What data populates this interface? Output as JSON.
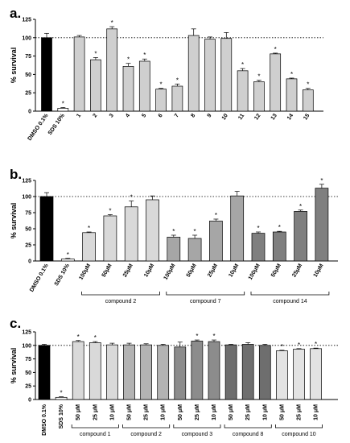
{
  "chart_data": [
    {
      "panel": "a.",
      "type": "bar",
      "ylabel": "% survival",
      "ylim": [
        0,
        125
      ],
      "yticks": [
        "0",
        "25",
        "50",
        "75",
        "100",
        "125"
      ],
      "reference_line": 100,
      "categories": [
        "DMSO 0.1%",
        "SDS 10%",
        "1",
        "2",
        "3",
        "4",
        "5",
        "6",
        "7",
        "8",
        "9",
        "10",
        "11",
        "12",
        "13",
        "14",
        "15"
      ],
      "values": [
        100,
        4,
        101,
        70,
        112,
        61,
        68,
        30,
        34,
        103,
        98,
        99,
        55,
        40,
        78,
        44,
        29
      ],
      "errors": [
        6,
        1,
        2,
        3,
        3,
        4,
        3,
        1,
        3,
        9,
        3,
        8,
        3,
        2,
        1,
        1,
        2
      ],
      "significant": [
        "",
        "*",
        "",
        "*",
        "*",
        "*",
        "*",
        "*",
        "*",
        "",
        "",
        "",
        "*",
        "*",
        "*",
        "*",
        "*"
      ],
      "bar_colors": [
        "#000000",
        "#ffffff",
        "#cfcfcf",
        "#cfcfcf",
        "#cfcfcf",
        "#cfcfcf",
        "#cfcfcf",
        "#cfcfcf",
        "#cfcfcf",
        "#cfcfcf",
        "#cfcfcf",
        "#cfcfcf",
        "#cfcfcf",
        "#cfcfcf",
        "#cfcfcf",
        "#cfcfcf",
        "#cfcfcf"
      ],
      "groups": []
    },
    {
      "panel": "b.",
      "type": "bar",
      "ylabel": "% survival",
      "ylim": [
        0,
        125
      ],
      "yticks": [
        "0",
        "25",
        "50",
        "75",
        "100",
        "125"
      ],
      "reference_line": 100,
      "categories": [
        "DMSO 0.1%",
        "SDS 10%",
        "100μM",
        "50μM",
        "25μM",
        "10μM",
        "100μM",
        "50μM",
        "25μM",
        "10μM",
        "100μM",
        "50μM",
        "25μM",
        "10μM"
      ],
      "values": [
        100,
        3,
        44,
        70,
        84,
        95,
        37,
        35,
        62,
        101,
        43,
        45,
        77,
        113
      ],
      "errors": [
        6,
        1,
        1,
        2,
        9,
        6,
        3,
        5,
        3,
        7,
        2,
        1,
        2,
        6
      ],
      "significant": [
        "",
        "*",
        "*",
        "*",
        "*",
        "",
        "*",
        "*",
        "*",
        "",
        "*",
        "*",
        "*",
        "*"
      ],
      "bar_colors": [
        "#000000",
        "#ffffff",
        "#d9d9d9",
        "#d9d9d9",
        "#d9d9d9",
        "#d9d9d9",
        "#a6a6a6",
        "#a6a6a6",
        "#a6a6a6",
        "#a6a6a6",
        "#7f7f7f",
        "#7f7f7f",
        "#7f7f7f",
        "#7f7f7f"
      ],
      "groups": [
        {
          "label": "compound 2",
          "start": 2,
          "end": 5
        },
        {
          "label": "compound 7",
          "start": 6,
          "end": 9
        },
        {
          "label": "compound 14",
          "start": 10,
          "end": 13
        }
      ]
    },
    {
      "panel": "c.",
      "type": "bar",
      "ylabel": "% survival",
      "ylim": [
        0,
        125
      ],
      "yticks": [
        "0",
        "25",
        "50",
        "75",
        "100",
        "125"
      ],
      "reference_line": 100,
      "categories": [
        "DMSO 0.1%",
        "SDS 10%",
        "50 μM",
        "25 μM",
        "10 μM",
        "50 μM",
        "25 μM",
        "10 μM",
        "50 μM",
        "25 μM",
        "10 μM",
        "50 μM",
        "25 μM",
        "10 μM",
        "50 μM",
        "25 μM",
        "10 μM"
      ],
      "values": [
        100,
        4,
        107,
        105,
        101,
        101,
        101,
        100,
        97,
        108,
        107,
        101,
        102,
        100,
        90,
        93,
        94
      ],
      "errors": [
        2,
        1,
        2,
        2,
        3,
        3,
        2,
        2,
        9,
        2,
        3,
        1,
        3,
        2,
        1,
        1,
        1
      ],
      "significant": [
        "",
        "*",
        "*",
        "*",
        "",
        "",
        "",
        "",
        "",
        "*",
        "*",
        "",
        "",
        "",
        "*",
        "*",
        "*"
      ],
      "bar_colors": [
        "#000000",
        "#ffffff",
        "#d9d9d9",
        "#d9d9d9",
        "#d9d9d9",
        "#b3b3b3",
        "#b3b3b3",
        "#b3b3b3",
        "#8c8c8c",
        "#8c8c8c",
        "#8c8c8c",
        "#6e6e6e",
        "#6e6e6e",
        "#6e6e6e",
        "#e3e3e3",
        "#e3e3e3",
        "#e3e3e3"
      ],
      "groups": [
        {
          "label": "compound 1",
          "start": 2,
          "end": 4
        },
        {
          "label": "compound 2",
          "start": 5,
          "end": 7
        },
        {
          "label": "compound 3",
          "start": 8,
          "end": 10
        },
        {
          "label": "compound 8",
          "start": 11,
          "end": 13
        },
        {
          "label": "compound 10",
          "start": 14,
          "end": 16
        }
      ]
    }
  ]
}
